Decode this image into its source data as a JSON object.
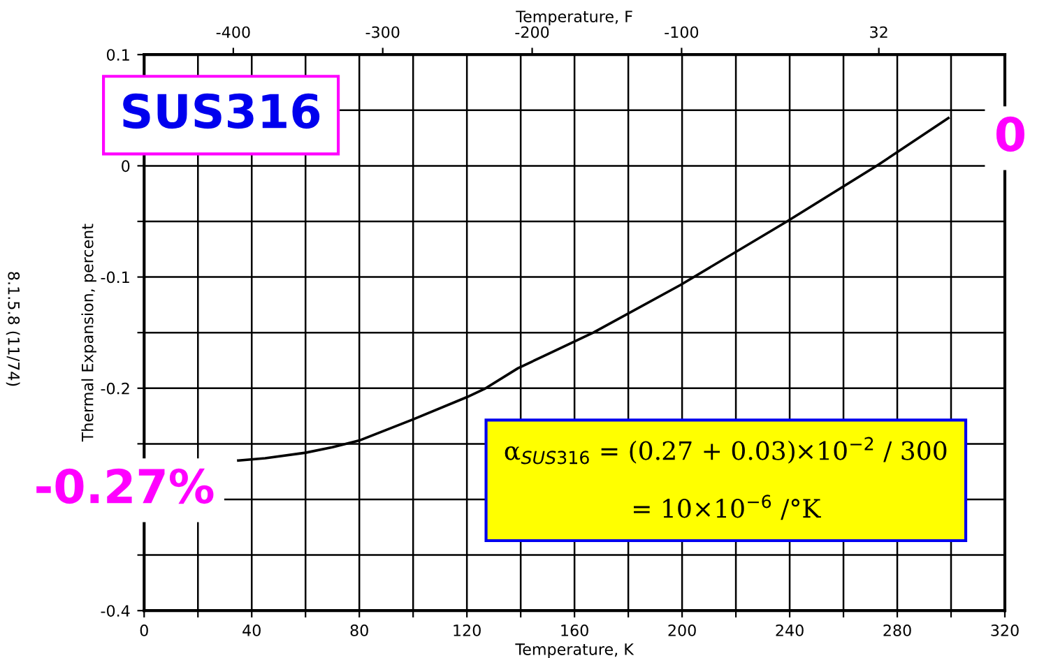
{
  "chart_data": {
    "type": "line",
    "xlabel": "Temperature, K",
    "x2label": "Temperature, F",
    "ylabel": "Thermal Expansion, percent",
    "annotations": [
      "SUS316",
      "0",
      "-0.27%",
      "α$_{SUS316}$ = (0.27 + 0.03)×10$^{−2}$ / 300",
      "= 10×10$^{−6}$ /°K",
      "8.1.5.8 (11/74)"
    ],
    "series": [
      {
        "color": "#000000",
        "x": [
          35,
          45,
          60,
          70,
          80,
          100,
          120,
          127,
          139,
          167,
          199.5,
          239,
          273,
          299
        ],
        "values": [
          -0.265,
          -0.263,
          -0.258,
          -0.253,
          -0.247,
          -0.228,
          -0.208,
          -0.2,
          -0.182,
          -0.15,
          -0.107,
          -0.05,
          0.001,
          0.043
        ]
      }
    ],
    "xlim": [
      0,
      320
    ],
    "ylim": [
      -0.4,
      0.1
    ],
    "x2lim": [
      -459.67,
      116.33
    ],
    "xticks": [
      0,
      {
        "value": 20,
        "label": null
      },
      40,
      {
        "value": 60,
        "label": null
      },
      80,
      {
        "value": 100,
        "label": null
      },
      120,
      {
        "value": 140,
        "label": null
      },
      160,
      {
        "value": 180,
        "label": null
      },
      200,
      {
        "value": 220,
        "label": null
      },
      240,
      {
        "value": 260,
        "label": null
      },
      280,
      {
        "value": 300,
        "label": null
      },
      320
    ],
    "x2ticks": [
      -400,
      -300,
      -200,
      -100,
      32
    ],
    "yticks": [
      {
        "value": -0.4,
        "label": "-0.4"
      },
      {
        "value": -0.35,
        "label": null
      },
      {
        "value": -0.3,
        "label": null
      },
      {
        "value": -0.25,
        "label": null
      },
      {
        "value": -0.2,
        "label": "-0.2"
      },
      {
        "value": -0.15,
        "label": null
      },
      {
        "value": -0.1,
        "label": "-0.1"
      },
      {
        "value": -0.05,
        "label": null
      },
      0,
      {
        "value": 0.05,
        "label": null
      },
      0.1
    ],
    "grid": true,
    "line_style": "solid",
    "marker": "none"
  }
}
